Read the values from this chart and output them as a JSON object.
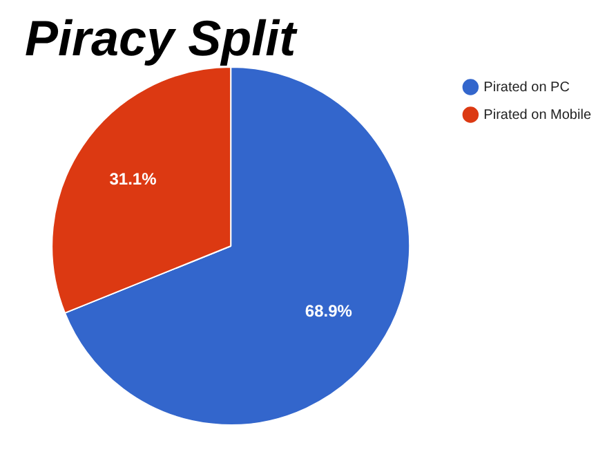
{
  "chart_data": {
    "type": "pie",
    "title": "Piracy Split",
    "categories": [
      "Pirated on PC",
      "Pirated on Mobile"
    ],
    "values": [
      68.9,
      31.1
    ],
    "colors": [
      "#3366cc",
      "#dc3912"
    ],
    "value_labels": [
      "68.9%",
      "31.1%"
    ],
    "legend": "top right"
  }
}
